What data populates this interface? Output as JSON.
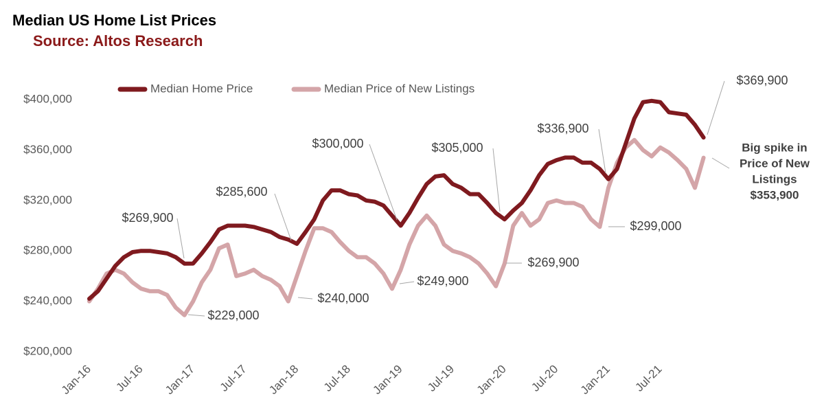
{
  "chart_data": {
    "type": "line",
    "title": "Median US Home List Prices",
    "subtitle": "Source: Altos Research",
    "categories": [
      "Jan-16",
      null,
      null,
      null,
      null,
      null,
      "Jul-16",
      null,
      null,
      null,
      null,
      null,
      "Jan-17",
      null,
      null,
      null,
      null,
      null,
      "Jul-17",
      null,
      null,
      null,
      null,
      null,
      "Jan-18",
      null,
      null,
      null,
      null,
      null,
      "Jul-18",
      null,
      null,
      null,
      null,
      null,
      "Jan-19",
      null,
      null,
      null,
      null,
      null,
      "Jul-19",
      null,
      null,
      null,
      null,
      null,
      "Jan-20",
      null,
      null,
      null,
      null,
      null,
      "Jul-20",
      null,
      null,
      null,
      null,
      null,
      "Jan-21",
      null,
      null,
      null,
      null,
      null,
      "Jul-21",
      null,
      null,
      null,
      null,
      null
    ],
    "series": [
      {
        "name": "Median Home Price",
        "color": "#7f1a1f",
        "values": [
          242000,
          248000,
          258000,
          268000,
          275000,
          279000,
          280000,
          280000,
          279000,
          278000,
          275000,
          269900,
          270000,
          278000,
          287000,
          297000,
          300000,
          300000,
          300000,
          299000,
          297000,
          295000,
          291000,
          289000,
          285600,
          295000,
          305000,
          320000,
          328000,
          328000,
          325000,
          324000,
          320000,
          319000,
          316000,
          308000,
          300000,
          310000,
          322000,
          333000,
          339000,
          340000,
          333000,
          330000,
          325000,
          325000,
          318000,
          310000,
          305000,
          312000,
          318000,
          328000,
          340000,
          349000,
          352000,
          354000,
          354000,
          350000,
          350000,
          345000,
          336900,
          345000,
          365000,
          385000,
          398000,
          399000,
          398000,
          390000,
          389000,
          388000,
          380000,
          369900
        ]
      },
      {
        "name": "Median Price of New Listings",
        "color": "#d4a5a8",
        "values": [
          240000,
          250000,
          262000,
          265000,
          262000,
          255000,
          250000,
          248000,
          248000,
          245000,
          235000,
          229000,
          240000,
          255000,
          265000,
          282000,
          285000,
          260000,
          262000,
          265000,
          260000,
          257000,
          252000,
          240000,
          260000,
          280000,
          298000,
          298000,
          295000,
          287000,
          280000,
          275000,
          275000,
          270000,
          262000,
          249900,
          265000,
          285000,
          300000,
          308000,
          300000,
          285000,
          280000,
          278000,
          275000,
          270000,
          262000,
          252000,
          269900,
          300000,
          310000,
          300000,
          305000,
          318000,
          320000,
          318000,
          318000,
          315000,
          305000,
          299000,
          330000,
          350000,
          362000,
          368000,
          360000,
          355000,
          362000,
          358000,
          352000,
          345000,
          330000,
          353900
        ]
      }
    ],
    "ylim": [
      200000,
      400000
    ],
    "yticks": [
      {
        "value": 200000,
        "label": "$200,000"
      },
      {
        "value": 240000,
        "label": "$240,000"
      },
      {
        "value": 280000,
        "label": "$280,000"
      },
      {
        "value": 320000,
        "label": "$320,000"
      },
      {
        "value": 360000,
        "label": "$360,000"
      },
      {
        "value": 400000,
        "label": "$400,000"
      }
    ],
    "grid": false,
    "legend": "top",
    "annotations": [
      "$269,900",
      "$229,000",
      "$285,600",
      "$240,000",
      "$300,000",
      "$249,900",
      "$305,000",
      "$269,900",
      "$336,900",
      "$299,000",
      "$369,900"
    ],
    "spike_note": [
      "Big spike in",
      "Price of New",
      "Listings",
      "$353,900"
    ]
  }
}
